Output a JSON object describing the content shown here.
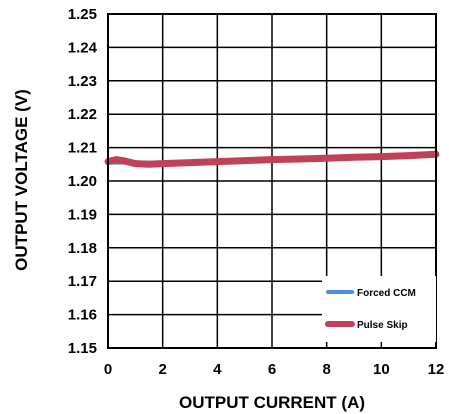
{
  "chart_data": {
    "type": "line",
    "xlabel": "OUTPUT CURRENT (A)",
    "ylabel": "OUTPUT VOLTAGE (V)",
    "xlim": [
      0,
      12
    ],
    "ylim": [
      1.15,
      1.25
    ],
    "x_ticks": [
      "0",
      "2",
      "4",
      "6",
      "8",
      "10",
      "12"
    ],
    "y_ticks": [
      "1.25",
      "1.24",
      "1.23",
      "1.22",
      "1.21",
      "1.20",
      "1.19",
      "1.18",
      "1.17",
      "1.16",
      "1.15"
    ],
    "grid": true,
    "legend_position": "bottom-right",
    "series": [
      {
        "name": "Forced CCM",
        "color": "#4a90d9",
        "x": [
          0,
          0.5,
          1,
          1.5,
          2,
          3,
          4,
          5,
          6,
          7,
          8,
          9,
          10,
          11,
          12
        ],
        "y": [
          1.2055,
          1.2055,
          1.2055,
          1.2055,
          1.2055,
          1.2058,
          1.206,
          1.2062,
          1.2064,
          1.2066,
          1.2068,
          1.2071,
          1.2073,
          1.2076,
          1.208
        ]
      },
      {
        "name": "Pulse Skip",
        "color": "#c0415a",
        "x": [
          0,
          0.3,
          0.6,
          1,
          1.5,
          2,
          3,
          4,
          5,
          6,
          7,
          8,
          9,
          10,
          11,
          12
        ],
        "y": [
          1.2058,
          1.2064,
          1.206,
          1.2052,
          1.205,
          1.2052,
          1.2055,
          1.2058,
          1.2061,
          1.2064,
          1.2066,
          1.2068,
          1.2071,
          1.2073,
          1.2076,
          1.208
        ]
      }
    ]
  }
}
